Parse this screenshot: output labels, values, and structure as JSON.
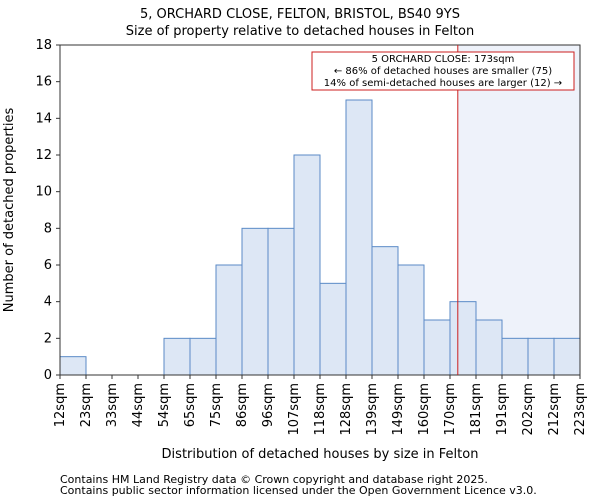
{
  "chart_data": {
    "type": "bar",
    "title_lines": [
      "5, ORCHARD CLOSE, FELTON, BRISTOL, BS40 9YS",
      "Size of property relative to detached houses in Felton"
    ],
    "xlabel": "Distribution of detached houses by size in Felton",
    "ylabel": "Number of detached properties",
    "bin_edges": [
      12,
      23,
      33,
      44,
      54,
      65,
      75,
      86,
      96,
      107,
      118,
      128,
      139,
      149,
      160,
      170,
      181,
      191,
      202,
      212,
      223
    ],
    "tick_labels": [
      "12sqm",
      "23sqm",
      "33sqm",
      "44sqm",
      "54sqm",
      "65sqm",
      "75sqm",
      "86sqm",
      "96sqm",
      "107sqm",
      "118sqm",
      "128sqm",
      "139sqm",
      "149sqm",
      "160sqm",
      "170sqm",
      "181sqm",
      "191sqm",
      "202sqm",
      "212sqm",
      "223sqm"
    ],
    "values": [
      1,
      0,
      0,
      0,
      2,
      2,
      6,
      8,
      8,
      12,
      5,
      15,
      7,
      6,
      3,
      4,
      3,
      2,
      2,
      2
    ],
    "ylim": [
      0,
      18
    ],
    "yticks": [
      0,
      2,
      4,
      6,
      8,
      10,
      12,
      14,
      16,
      18
    ],
    "marker_bin_position": 15.3,
    "annotation_lines": [
      "5 ORCHARD CLOSE: 173sqm",
      "← 86% of detached houses are smaller (75)",
      "14% of semi-detached houses are larger (12) →"
    ],
    "bar_fill": "#dde7f5",
    "bar_stroke": "#5a8ac6",
    "marker_color": "#cc1f1f",
    "highlight_fill": "#eef2fa"
  },
  "footer": {
    "line1": "Contains HM Land Registry data © Crown copyright and database right 2025.",
    "line2": "Contains public sector information licensed under the Open Government Licence v3.0."
  }
}
